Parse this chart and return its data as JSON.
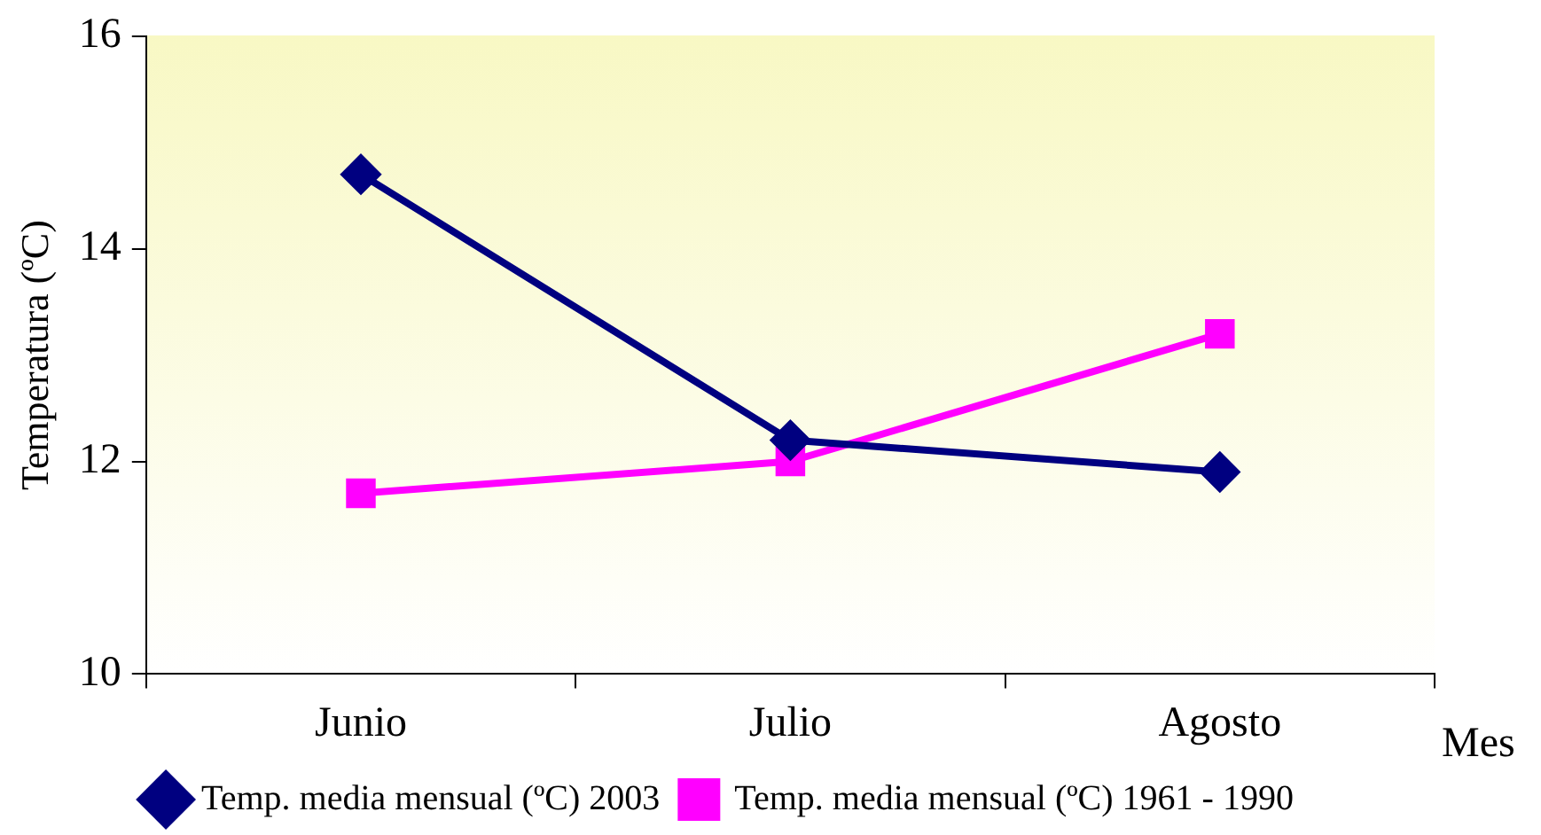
{
  "chart_data": {
    "type": "line",
    "ylabel": "Temperatura (ºC)",
    "xlabel": "Mes",
    "categories": [
      "Junio",
      "Julio",
      "Agosto"
    ],
    "series": [
      {
        "name": "Temp. media mensual (ºC) 2003",
        "color": "#000080",
        "values": [
          14.7,
          12.2,
          11.9
        ],
        "marker": "diamond"
      },
      {
        "name": "Temp. media mensual (ºC) 1961 - 1990",
        "color": "#ff00ff",
        "values": [
          11.7,
          12.0,
          13.2
        ],
        "marker": "square"
      }
    ],
    "ylim": [
      10,
      16
    ],
    "yticks": [
      10,
      12,
      14,
      16
    ],
    "grid": false,
    "legend": "bottom",
    "line_style": "solid"
  }
}
